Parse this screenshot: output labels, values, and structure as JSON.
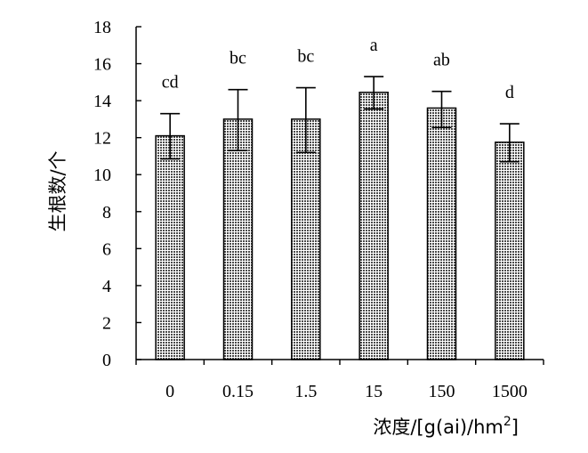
{
  "chart_data": {
    "type": "bar",
    "title": "",
    "xlabel": "浓度/[g(ai)/hm",
    "xlabel_sup": "2",
    "xlabel_close": "]",
    "ylabel": "生根数/个",
    "categories": [
      "0",
      "0.15",
      "1.5",
      "15",
      "150",
      "1500"
    ],
    "values": [
      12.1,
      13.0,
      13.0,
      14.45,
      13.6,
      11.75
    ],
    "error_upper": [
      13.3,
      14.6,
      14.7,
      15.3,
      14.5,
      12.75
    ],
    "error_lower": [
      10.85,
      11.3,
      11.2,
      13.55,
      12.55,
      10.7
    ],
    "significance_labels": [
      "cd",
      "bc",
      "bc",
      "a",
      "ab",
      "d"
    ],
    "ylim": [
      0,
      18
    ],
    "yticks": [
      "0",
      "2",
      "4",
      "6",
      "8",
      "10",
      "12",
      "14",
      "16",
      "18"
    ],
    "grid": false,
    "legend": "none",
    "bar_fill": "#8c8c8c",
    "bar_edge": "#000000"
  }
}
